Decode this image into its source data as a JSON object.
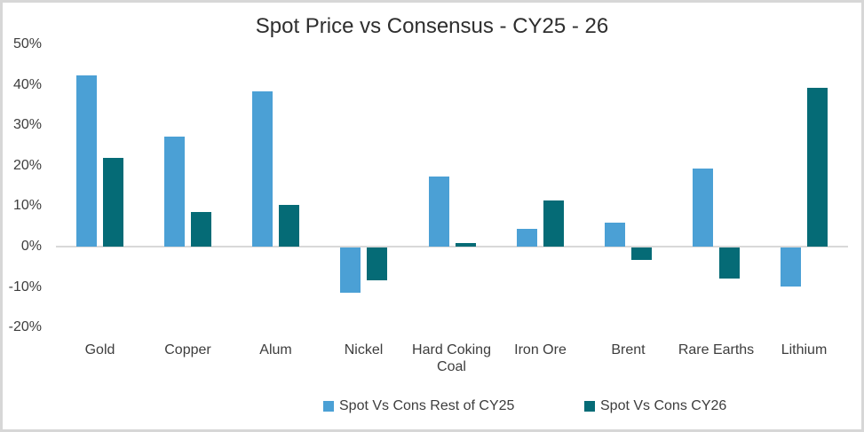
{
  "chart_data": {
    "type": "bar",
    "title": "Spot Price vs Consensus - CY25 - 26",
    "xlabel": "",
    "ylabel": "",
    "ylim": [
      -20,
      50
    ],
    "yticks": [
      50,
      40,
      30,
      20,
      10,
      0,
      -10,
      -20
    ],
    "ytick_suffix": "%",
    "grid": false,
    "legend_position": "bottom",
    "categories": [
      "Gold",
      "Copper",
      "Alum",
      "Nickel",
      "Hard Coking Coal",
      "Iron Ore",
      "Brent",
      "Rare Earths",
      "Lithium"
    ],
    "series": [
      {
        "name": "Spot Vs Cons Rest of CY25",
        "color": "#4BA0D5",
        "values": [
          42.3,
          27.3,
          38.3,
          -11.2,
          17.4,
          4.4,
          6.0,
          19.2,
          -9.7
        ]
      },
      {
        "name": "Spot Vs Cons CY26",
        "color": "#056B76",
        "values": [
          22.0,
          8.5,
          10.2,
          -8.2,
          0.8,
          11.3,
          -3.0,
          -7.7,
          39.3
        ]
      }
    ]
  },
  "colors": {
    "background": "#FFFFFF",
    "frame_border": "#D7D7D7",
    "axis_line": "#D9D9D9",
    "title_text": "#2E2E2E",
    "label_text": "#3D3D3D"
  }
}
